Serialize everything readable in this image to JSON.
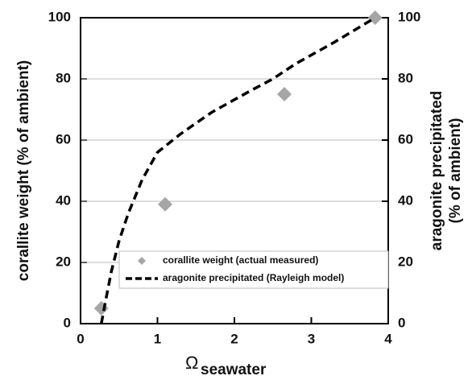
{
  "chart_data": {
    "type": "scatter",
    "ylabel": "corallite weight (% of ambient)",
    "y2label": [
      "aragonite precipitated",
      "(% of ambient)"
    ],
    "xlabel": "Ω",
    "xlabel_sub": "seawater",
    "xlim": [
      0,
      4
    ],
    "xticks": [
      0,
      1,
      2,
      3,
      4
    ],
    "ylim": [
      0,
      100
    ],
    "yticks": [
      0,
      20,
      40,
      60,
      80,
      100
    ],
    "y2lim": [
      0,
      100
    ],
    "y2ticks": [
      0,
      20,
      40,
      60,
      80,
      100
    ],
    "grid": true,
    "series": [
      {
        "name": "corallite weight (actual measured)",
        "type": "scatter",
        "color": "#a6a6a6",
        "x": [
          0.27,
          1.1,
          2.65,
          3.83
        ],
        "values": [
          5,
          39,
          75,
          100
        ]
      },
      {
        "name": "aragonite precipitated (Rayleigh model)",
        "type": "line",
        "color": "#000000",
        "axis": "y2",
        "x": [
          0.27,
          0.33,
          0.4,
          0.5,
          0.62,
          0.8,
          1.0,
          1.3,
          1.7,
          2.2,
          2.5,
          2.8,
          3.3,
          3.83
        ],
        "values": [
          0,
          8,
          17,
          27,
          36,
          47,
          56,
          62,
          69,
          76,
          80,
          85,
          92,
          100
        ]
      }
    ]
  }
}
